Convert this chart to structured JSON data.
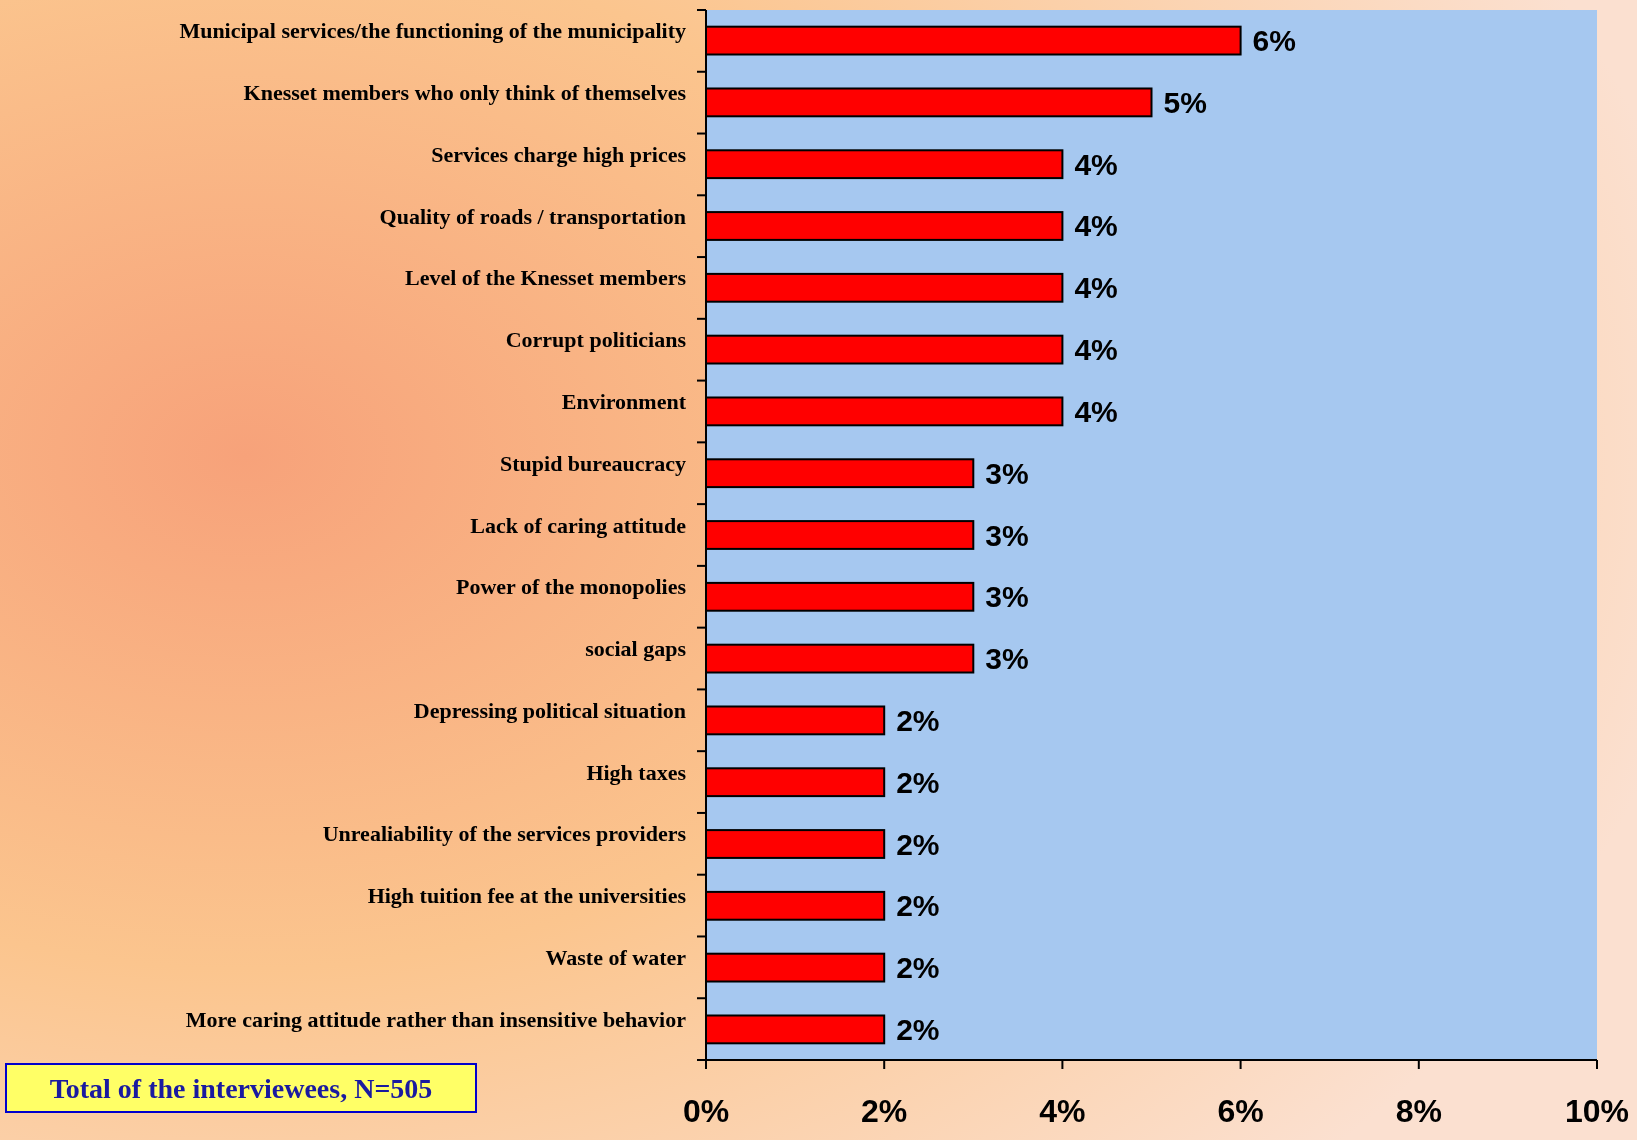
{
  "chart_data": {
    "type": "bar",
    "orientation": "horizontal",
    "categories": [
      "Municipal services/the functioning of the municipality",
      "Knesset members who only think of themselves",
      "Services charge high prices",
      "Quality of roads / transportation",
      "Level of the Knesset members",
      "Corrupt politicians",
      "Environment",
      "Stupid bureaucracy",
      "Lack of caring attitude",
      "Power of the monopolies",
      "social gaps",
      "Depressing political situation",
      "High taxes",
      "Unrealiability of the services providers",
      "High tuition fee at the universities",
      "Waste of water",
      "More caring attitude rather than insensitive behavior"
    ],
    "values": [
      6,
      5,
      4,
      4,
      4,
      4,
      4,
      3,
      3,
      3,
      3,
      2,
      2,
      2,
      2,
      2,
      2
    ],
    "value_labels": [
      "6%",
      "5%",
      "4%",
      "4%",
      "4%",
      "4%",
      "4%",
      "3%",
      "3%",
      "3%",
      "3%",
      "2%",
      "2%",
      "2%",
      "2%",
      "2%",
      "2%"
    ],
    "color": "#ff0000",
    "xlim": [
      0,
      10
    ],
    "xticks": [
      {
        "value": 0,
        "label": "0%"
      },
      {
        "value": 2,
        "label": "2%"
      },
      {
        "value": 4,
        "label": "4%"
      },
      {
        "value": 6,
        "label": "6%"
      },
      {
        "value": 8,
        "label": "8%"
      },
      {
        "value": 10,
        "label": "10%"
      }
    ],
    "grid": false,
    "annotations": [
      "Total of the interviewees, N=505"
    ]
  }
}
